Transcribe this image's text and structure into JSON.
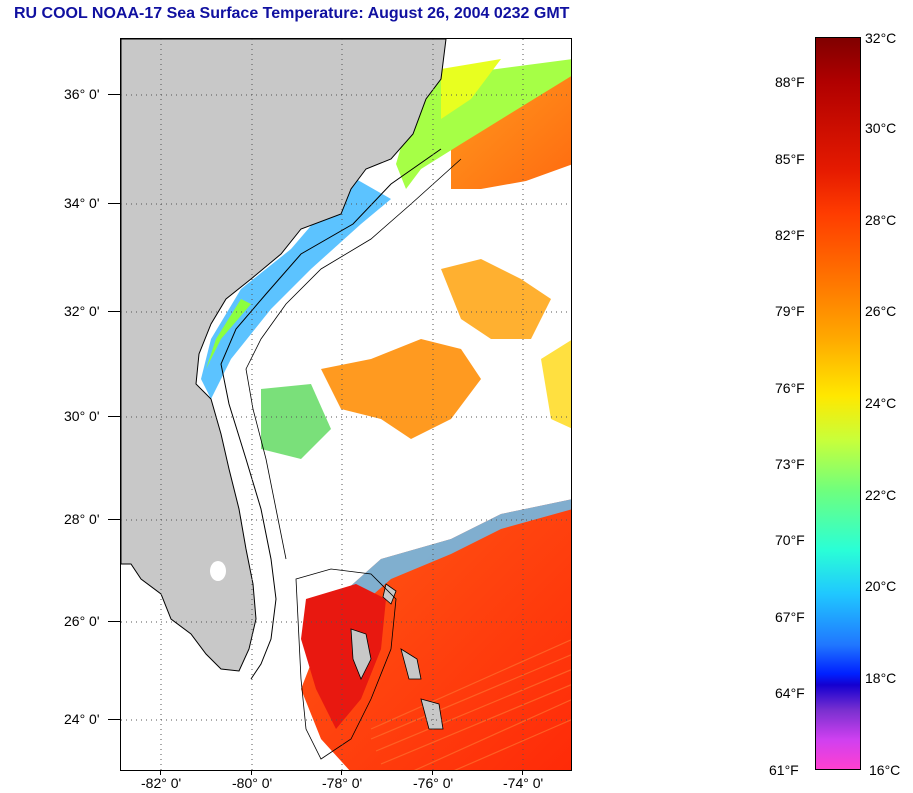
{
  "title": "RU COOL  NOAA-17  Sea Surface Temperature:  August 26, 2004 0232 GMT",
  "latitude_labels": [
    "36° 0'",
    "34° 0'",
    "32° 0'",
    "30° 0'",
    "28° 0'",
    "26° 0'",
    "24° 0'"
  ],
  "longitude_labels": [
    "-82° 0'",
    "-80° 0'",
    "-78° 0'",
    "-76° 0'",
    "-74° 0'"
  ],
  "colorbar": {
    "fahrenheit_labels": [
      "88°F",
      "85°F",
      "82°F",
      "79°F",
      "76°F",
      "73°F",
      "70°F",
      "67°F",
      "64°F",
      "61°F"
    ],
    "celsius_labels": [
      "32°C",
      "30°C",
      "28°C",
      "26°C",
      "24°C",
      "22°C",
      "20°C",
      "18°C",
      "16°C"
    ],
    "range_celsius": [
      16,
      32
    ]
  },
  "colors": {
    "land": "#c8c8c8",
    "cloud": "#ffffff",
    "title": "#1010a0",
    "grid": "#555555"
  }
}
